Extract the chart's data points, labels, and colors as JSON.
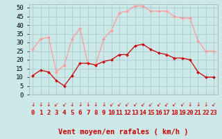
{
  "hours": [
    0,
    1,
    2,
    3,
    4,
    5,
    6,
    7,
    8,
    9,
    10,
    11,
    12,
    13,
    14,
    15,
    16,
    17,
    18,
    19,
    20,
    21,
    22,
    23
  ],
  "vent_moyen": [
    11,
    14,
    13,
    8,
    5,
    11,
    18,
    18,
    17,
    19,
    20,
    23,
    23,
    28,
    29,
    26,
    24,
    23,
    21,
    21,
    20,
    13,
    10,
    10
  ],
  "rafales": [
    26,
    32,
    33,
    13,
    17,
    32,
    38,
    18,
    17,
    32,
    37,
    47,
    48,
    51,
    51,
    48,
    48,
    48,
    45,
    44,
    44,
    31,
    25,
    25
  ],
  "color_moyen": "#cc0000",
  "color_rafales": "#ff9999",
  "bg_color": "#cce8e8",
  "grid_color": "#aacccc",
  "xlabel": "Vent moyen/en rafales ( km/h )",
  "ylim": [
    0,
    52
  ],
  "yticks": [
    0,
    5,
    10,
    15,
    20,
    25,
    30,
    35,
    40,
    45,
    50
  ],
  "tick_fontsize": 6.5,
  "xlabel_fontsize": 7.5
}
